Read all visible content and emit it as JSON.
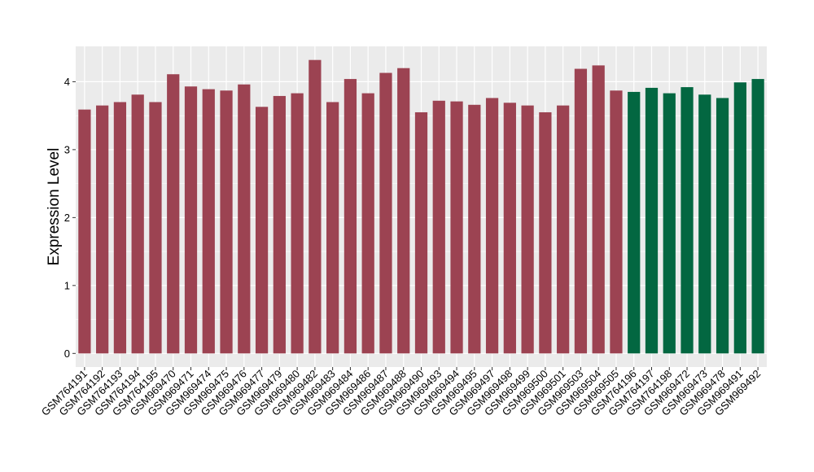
{
  "chart_data": {
    "type": "bar",
    "ylabel": "Expression Level",
    "xlabel": "",
    "ylim": [
      -0.2,
      4.52
    ],
    "yticks": [
      0,
      1,
      2,
      3,
      4
    ],
    "grid": true,
    "colors": {
      "group_a": "#9C4352",
      "group_b": "#036741",
      "panel_bg": "#EBEBEB",
      "grid": "#FFFFFF"
    },
    "categories": [
      "GSM764191",
      "GSM764192",
      "GSM764193",
      "GSM764194",
      "GSM764195",
      "GSM969470",
      "GSM969471",
      "GSM969474",
      "GSM969475",
      "GSM969476",
      "GSM969477",
      "GSM969479",
      "GSM969480",
      "GSM969482",
      "GSM969483",
      "GSM969484",
      "GSM969486",
      "GSM969487",
      "GSM969488",
      "GSM969490",
      "GSM969493",
      "GSM969494",
      "GSM969495",
      "GSM969497",
      "GSM969498",
      "GSM969499",
      "GSM969500",
      "GSM969501",
      "GSM969503",
      "GSM969504",
      "GSM969505",
      "GSM764196",
      "GSM764197",
      "GSM764198",
      "GSM969472",
      "GSM969473",
      "GSM969478",
      "GSM969491",
      "GSM969492"
    ],
    "values": [
      3.59,
      3.65,
      3.7,
      3.81,
      3.7,
      4.11,
      3.93,
      3.89,
      3.87,
      3.96,
      3.63,
      3.79,
      3.83,
      4.32,
      3.7,
      4.04,
      3.83,
      4.13,
      4.2,
      3.55,
      3.72,
      3.71,
      3.66,
      3.76,
      3.69,
      3.65,
      3.55,
      3.65,
      4.19,
      4.24,
      3.87,
      3.85,
      3.91,
      3.83,
      3.92,
      3.81,
      3.76,
      3.99,
      4.04
    ],
    "groups": [
      "a",
      "a",
      "a",
      "a",
      "a",
      "a",
      "a",
      "a",
      "a",
      "a",
      "a",
      "a",
      "a",
      "a",
      "a",
      "a",
      "a",
      "a",
      "a",
      "a",
      "a",
      "a",
      "a",
      "a",
      "a",
      "a",
      "a",
      "a",
      "a",
      "a",
      "a",
      "b",
      "b",
      "b",
      "b",
      "b",
      "b",
      "b",
      "b"
    ]
  }
}
